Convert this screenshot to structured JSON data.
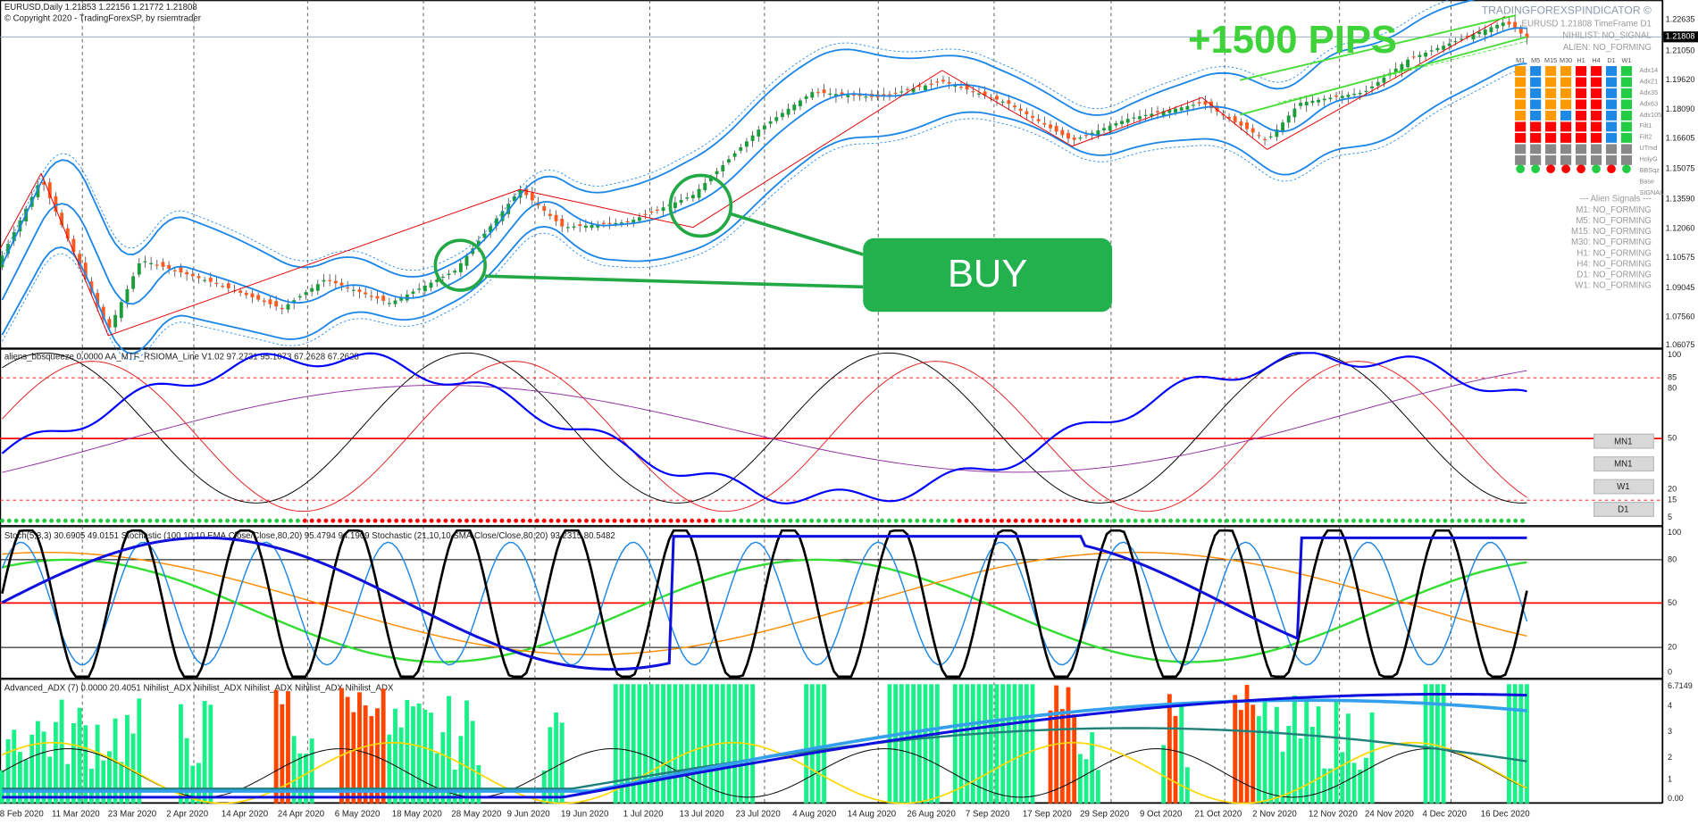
{
  "header": {
    "symbol_line": "EURUSD,Daily  1.21853 1.22156 1.21772 1.21808",
    "copyright": "© Copyright 2020 - TradingForexSP, by rsiemtrader"
  },
  "annotations": {
    "pips": "+1500 PIPS",
    "buy": "BUY"
  },
  "info_box": {
    "title": "TRADINGFOREXSPINDICATOR ©",
    "line1": "EURUSD 1.21808 TimeFrame D1",
    "line2": "NIHILIST: NO_SIGNAL",
    "line3": "ALIEN: NO_FORMING"
  },
  "matrix": {
    "columns": [
      "M1",
      "M5",
      "M15",
      "M30",
      "H1",
      "H4",
      "D1",
      "W1"
    ],
    "rows": [
      "Adx14",
      "Adx21",
      "Adx35",
      "Adx63",
      "Adx105",
      "Filt1",
      "Filt2",
      "UTrnd",
      "HolyG",
      "BBSqz",
      "Base",
      "SIGNAL"
    ]
  },
  "alien_signals": {
    "title": "--- Alien Signals ---",
    "lines": [
      "M1: NO_FORMING",
      "M5: NO_FORMING",
      "M15: NO_FORMING",
      "M30: NO_FORMING",
      "H1: NO_FORMING",
      "H4: NO_FORMING",
      "D1: NO_FORMING",
      "W1: NO_FORMING"
    ]
  },
  "price_axis": [
    "1.22635",
    "1.21808",
    "1.21050",
    "1.19620",
    "1.18090",
    "1.16605",
    "1.15075",
    "1.13590",
    "1.12060",
    "1.10575",
    "1.09045",
    "1.07560",
    "1.06075"
  ],
  "panel2": {
    "label": "aliens_bbsqueeze 0.0000  AA_MTF_RSIOMA_Line V1.02 97.2731 95.1073 67.2628 67.2628",
    "axis": [
      "100",
      "85",
      "80",
      "50",
      "20",
      "15",
      "5"
    ],
    "buttons": [
      "MN1",
      "MN1",
      "W1",
      "D1"
    ]
  },
  "panel3": {
    "label": "Stoch(5,3,3) 30.6905 49.0151  Stochastic (100,10,10,EMA,Close/Close,80,20) 95.4794 94.1909  Stochastic (21,10,10,SMA,Close/Close,80,20) 93.2315 80.5482",
    "axis": [
      "100",
      "80",
      "50",
      "20",
      "0"
    ]
  },
  "panel4": {
    "label": "Advanced_ADX (7) 0.0000 20.4051  Nihilist_ADX  Nihilist_ADX  Nihilist_ADX  Nihilist_ADX  Nihilist_ADX",
    "axis": [
      "6.7149",
      "4",
      "3",
      "2",
      "1",
      "0.00"
    ]
  },
  "dates": [
    "8 Feb 2020",
    "11 Mar 2020",
    "23 Mar 2020",
    "2 Apr 2020",
    "14 Apr 2020",
    "24 Apr 2020",
    "6 May 2020",
    "18 May 2020",
    "28 May 2020",
    "9 Jun 2020",
    "19 Jun 2020",
    "1 Jul 2020",
    "13 Jul 2020",
    "23 Jul 2020",
    "4 Aug 2020",
    "14 Aug 2020",
    "26 Aug 2020",
    "7 Sep 2020",
    "17 Sep 2020",
    "29 Sep 2020",
    "9 Oct 2020",
    "21 Oct 2020",
    "2 Nov 2020",
    "12 Nov 2020",
    "24 Nov 2020",
    "4 Dec 2020",
    "16 Dec 2020"
  ]
}
